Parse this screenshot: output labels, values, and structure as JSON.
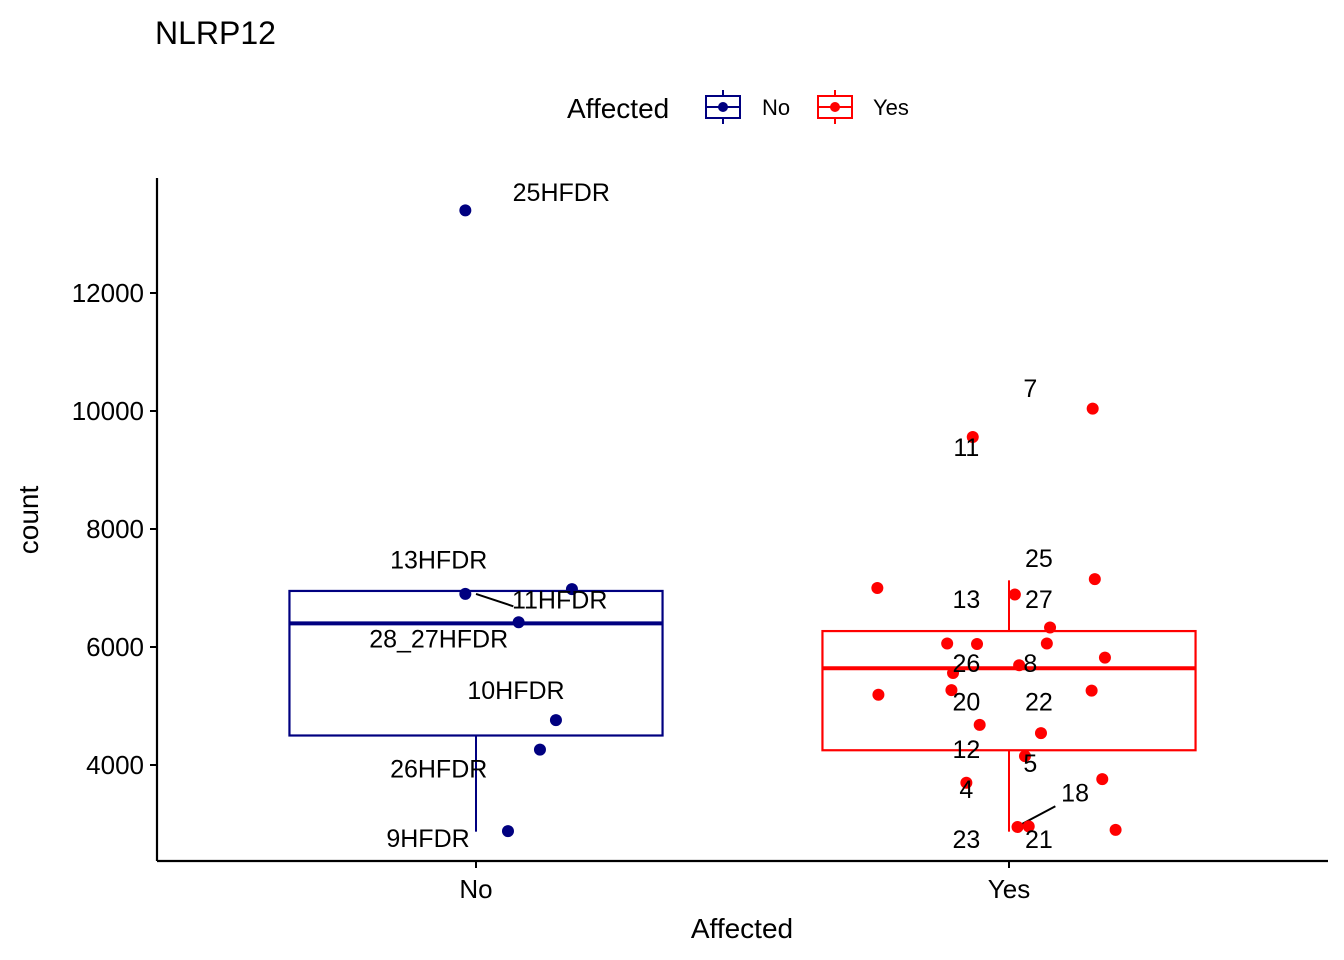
{
  "chart_data": {
    "type": "boxplot",
    "title": "NLRP12",
    "xlabel": "Affected",
    "ylabel": "count",
    "ylim": [
      2400,
      13900
    ],
    "yticks": [
      4000,
      6000,
      8000,
      10000,
      12000
    ],
    "categories": [
      "No",
      "Yes"
    ],
    "legend": {
      "title": "Affected",
      "entries": [
        "No",
        "Yes"
      ],
      "position": "top"
    },
    "colors": {
      "No": "#000080",
      "Yes": "#ff0000"
    },
    "boxes": [
      {
        "group": "No",
        "q1": 4500,
        "median": 6400,
        "q3": 6950,
        "whisker_low": 2870,
        "whisker_high": 6950
      },
      {
        "group": "Yes",
        "q1": 4250,
        "median": 5640,
        "q3": 6270,
        "whisker_low": 2870,
        "whisker_high": 7130
      }
    ],
    "points": [
      {
        "group": "No",
        "x": -0.02,
        "y": 13400
      },
      {
        "group": "No",
        "x": -0.02,
        "y": 6900
      },
      {
        "group": "No",
        "x": 0.18,
        "y": 6980
      },
      {
        "group": "No",
        "x": 0.08,
        "y": 6420
      },
      {
        "group": "No",
        "x": 0.15,
        "y": 4760
      },
      {
        "group": "No",
        "x": 0.12,
        "y": 4260
      },
      {
        "group": "No",
        "x": 0.06,
        "y": 2880
      },
      {
        "group": "Yes",
        "x": 1.157,
        "y": 10040
      },
      {
        "group": "Yes",
        "x": 0.932,
        "y": 9560
      },
      {
        "group": "Yes",
        "x": 0.945,
        "y": 4680
      },
      {
        "group": "Yes",
        "x": 1.161,
        "y": 7150
      },
      {
        "group": "Yes",
        "x": 0.753,
        "y": 7000
      },
      {
        "group": "Yes",
        "x": 1.011,
        "y": 6890
      },
      {
        "group": "Yes",
        "x": 1.077,
        "y": 6330
      },
      {
        "group": "Yes",
        "x": 0.884,
        "y": 6060
      },
      {
        "group": "Yes",
        "x": 0.94,
        "y": 6050
      },
      {
        "group": "Yes",
        "x": 1.071,
        "y": 6060
      },
      {
        "group": "Yes",
        "x": 1.18,
        "y": 5820
      },
      {
        "group": "Yes",
        "x": 1.019,
        "y": 5690
      },
      {
        "group": "Yes",
        "x": 0.895,
        "y": 5560
      },
      {
        "group": "Yes",
        "x": 0.892,
        "y": 5270
      },
      {
        "group": "Yes",
        "x": 1.155,
        "y": 5260
      },
      {
        "group": "Yes",
        "x": 0.755,
        "y": 5190
      },
      {
        "group": "Yes",
        "x": 1.06,
        "y": 4540
      },
      {
        "group": "Yes",
        "x": 1.03,
        "y": 4150
      },
      {
        "group": "Yes",
        "x": 1.175,
        "y": 3760
      },
      {
        "group": "Yes",
        "x": 0.92,
        "y": 3700
      },
      {
        "group": "Yes",
        "x": 1.2,
        "y": 2900
      },
      {
        "group": "Yes",
        "x": 1.016,
        "y": 2950
      },
      {
        "group": "Yes",
        "x": 1.037,
        "y": 2960
      }
    ],
    "labels": [
      {
        "text": "25HFDR",
        "x": 0.16,
        "y": 13560
      },
      {
        "text": "13HFDR",
        "x": -0.07,
        "y": 7330
      },
      {
        "text": "11HFDR",
        "x": 0.157,
        "y": 6650
      },
      {
        "text": "28_27HFDR",
        "x": -0.07,
        "y": 5990
      },
      {
        "text": "10HFDR",
        "x": 0.075,
        "y": 5120
      },
      {
        "text": "26HFDR",
        "x": -0.07,
        "y": 3790
      },
      {
        "text": "9HFDR",
        "x": -0.09,
        "y": 2610
      },
      {
        "text": "7",
        "x": 1.04,
        "y": 10240
      },
      {
        "text": "11",
        "x": 0.92,
        "y": 9240
      },
      {
        "text": "25",
        "x": 1.056,
        "y": 7360
      },
      {
        "text": "13",
        "x": 0.92,
        "y": 6660
      },
      {
        "text": "27",
        "x": 1.056,
        "y": 6660
      },
      {
        "text": "26",
        "x": 0.92,
        "y": 5580
      },
      {
        "text": "8",
        "x": 1.04,
        "y": 5580
      },
      {
        "text": "20",
        "x": 0.92,
        "y": 4920
      },
      {
        "text": "22",
        "x": 1.056,
        "y": 4920
      },
      {
        "text": "12",
        "x": 0.92,
        "y": 4120
      },
      {
        "text": "5",
        "x": 1.04,
        "y": 3880
      },
      {
        "text": "4",
        "x": 0.92,
        "y": 3440
      },
      {
        "text": "18",
        "x": 1.124,
        "y": 3380
      },
      {
        "text": "23",
        "x": 0.92,
        "y": 2590
      },
      {
        "text": "21",
        "x": 1.056,
        "y": 2590
      }
    ],
    "connectors": [
      {
        "x1": 0.0,
        "y1": 6900,
        "x2": 0.07,
        "y2": 6690
      },
      {
        "x1": 1.016,
        "y1": 2960,
        "x2": 1.087,
        "y2": 3300
      }
    ]
  }
}
